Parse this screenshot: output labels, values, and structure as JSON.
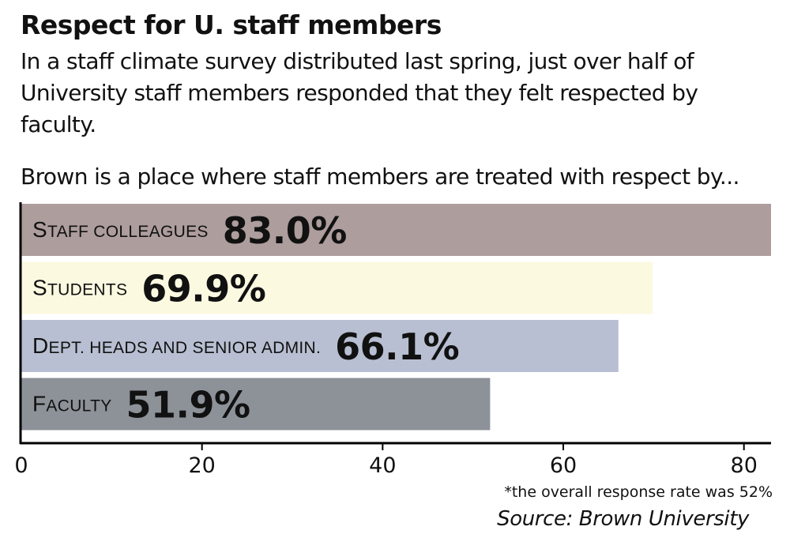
{
  "title": "Respect for U. staff members",
  "subtitle": "In a staff climate survey distributed last spring, just over half of University staff members responded that they felt respected by faculty.",
  "footnote": "*the overall response rate was 52%",
  "source": "Source: Brown University",
  "colors": {
    "staff_colleagues": "#ae9d9d",
    "students": "#fcf9e1",
    "dept_heads": "#b8bfd2",
    "faculty": "#8d9299",
    "axis": "#000000"
  },
  "chart_data": {
    "type": "bar",
    "orientation": "horizontal",
    "title": "Brown is a place where staff members are treated with respect by...",
    "categories": [
      "Staff colleagues",
      "Students",
      "Dept. heads and senior admin.",
      "Faculty"
    ],
    "values": [
      83.0,
      69.9,
      66.1,
      51.9
    ],
    "value_labels": [
      "83.0%",
      "69.9%",
      "66.1%",
      "51.9%"
    ],
    "xlim": [
      0,
      83
    ],
    "xticks": [
      0,
      20,
      40,
      60,
      80
    ],
    "xtick_labels": [
      "0",
      "20",
      "40",
      "60",
      "80"
    ],
    "xlabel": "",
    "ylabel": "",
    "grid": false
  }
}
